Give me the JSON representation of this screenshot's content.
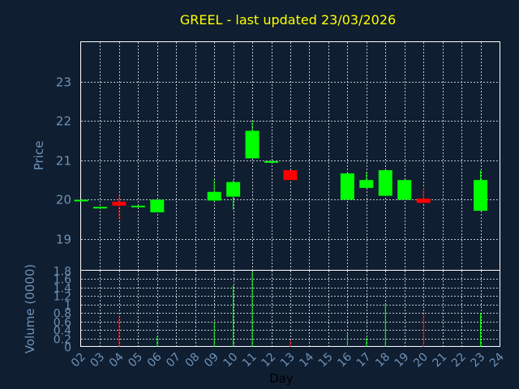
{
  "chart_data": {
    "type": "candlestick",
    "title": "GREEL - last updated 23/03/2026",
    "xlabel": "Day",
    "x_ticks": [
      "02",
      "03",
      "04",
      "05",
      "06",
      "07",
      "08",
      "09",
      "10",
      "11",
      "12",
      "13",
      "14",
      "15",
      "16",
      "17",
      "18",
      "19",
      "20",
      "21",
      "22",
      "23",
      "24"
    ],
    "price": {
      "ylabel": "Price",
      "ylim": [
        18.2,
        24.0
      ],
      "y_ticks": [
        "19",
        "20",
        "21",
        "22",
        "23"
      ],
      "candles": [
        {
          "day": "02",
          "open": 20.0,
          "high": 20.0,
          "low": 20.0,
          "close": 20.0
        },
        {
          "day": "03",
          "open": 19.82,
          "high": 19.82,
          "low": 19.82,
          "close": 19.82
        },
        {
          "day": "04",
          "open": 19.95,
          "high": 20.1,
          "low": 19.5,
          "close": 19.85
        },
        {
          "day": "05",
          "open": 19.85,
          "high": 19.85,
          "low": 19.85,
          "close": 19.85
        },
        {
          "day": "06",
          "open": 19.68,
          "high": 20.0,
          "low": 19.68,
          "close": 20.0
        },
        {
          "day": "09",
          "open": 19.98,
          "high": 20.5,
          "low": 19.95,
          "close": 20.2
        },
        {
          "day": "10",
          "open": 20.08,
          "high": 20.5,
          "low": 19.75,
          "close": 20.45
        },
        {
          "day": "11",
          "open": 21.05,
          "high": 22.0,
          "low": 21.05,
          "close": 21.75
        },
        {
          "day": "12",
          "open": 20.98,
          "high": 20.98,
          "low": 20.98,
          "close": 20.98
        },
        {
          "day": "13",
          "open": 20.75,
          "high": 20.75,
          "low": 20.5,
          "close": 20.5
        },
        {
          "day": "16",
          "open": 20.0,
          "high": 20.67,
          "low": 20.0,
          "close": 20.67
        },
        {
          "day": "17",
          "open": 20.3,
          "high": 20.7,
          "low": 20.3,
          "close": 20.5
        },
        {
          "day": "18",
          "open": 20.1,
          "high": 20.75,
          "low": 20.1,
          "close": 20.75
        },
        {
          "day": "19",
          "open": 20.0,
          "high": 20.5,
          "low": 20.0,
          "close": 20.5
        },
        {
          "day": "20",
          "open": 20.03,
          "high": 20.3,
          "low": 19.9,
          "close": 19.92
        },
        {
          "day": "23",
          "open": 19.72,
          "high": 20.75,
          "low": 19.72,
          "close": 20.5
        }
      ]
    },
    "volume": {
      "ylabel": "Volume (0000)",
      "ylim": [
        0,
        1.8
      ],
      "y_ticks": [
        "0",
        "0.2",
        "0.4",
        "0.6",
        "0.8",
        "1",
        "1.2",
        "1.4",
        "1.6",
        "1.8"
      ],
      "bars": [
        {
          "day": "04",
          "value": 0.72,
          "direction": "down"
        },
        {
          "day": "06",
          "value": 0.25,
          "direction": "up"
        },
        {
          "day": "09",
          "value": 0.58,
          "direction": "up"
        },
        {
          "day": "10",
          "value": 1.45,
          "direction": "up"
        },
        {
          "day": "11",
          "value": 1.78,
          "direction": "up"
        },
        {
          "day": "13",
          "value": 0.15,
          "direction": "down"
        },
        {
          "day": "16",
          "value": 0.32,
          "direction": "up"
        },
        {
          "day": "17",
          "value": 0.22,
          "direction": "up"
        },
        {
          "day": "18",
          "value": 1.02,
          "direction": "up"
        },
        {
          "day": "20",
          "value": 0.78,
          "direction": "down"
        },
        {
          "day": "23",
          "value": 0.8,
          "direction": "up"
        }
      ]
    },
    "colors": {
      "background": "#0f1e30",
      "up": "#00ff00",
      "down": "#ff0000",
      "grid": "#ffffff",
      "axis_text": "#6f92b8",
      "title": "#ffff00"
    },
    "grid": true
  }
}
